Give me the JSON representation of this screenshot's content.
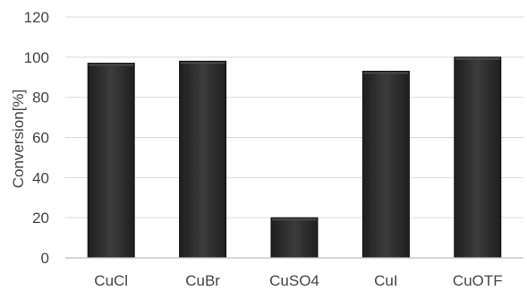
{
  "chart_data": {
    "type": "bar",
    "title": "",
    "xlabel": "",
    "ylabel": "Conversion[%]",
    "categories": [
      "CuCl",
      "CuBr",
      "CuSO4",
      "CuI",
      "CuOTF"
    ],
    "values": [
      97,
      98,
      20,
      93,
      100
    ],
    "ylim": [
      0,
      120
    ],
    "yticks": [
      0,
      20,
      40,
      60,
      80,
      100,
      120
    ],
    "grid": true,
    "legend": "none",
    "colors": {
      "bar_fill": "#303030",
      "bar_edge": "#111111",
      "bar_highlight": "#4a4a4a",
      "gridline": "#d9d9d9",
      "axis_line": "#bfbfbf",
      "text": "#444444"
    }
  }
}
